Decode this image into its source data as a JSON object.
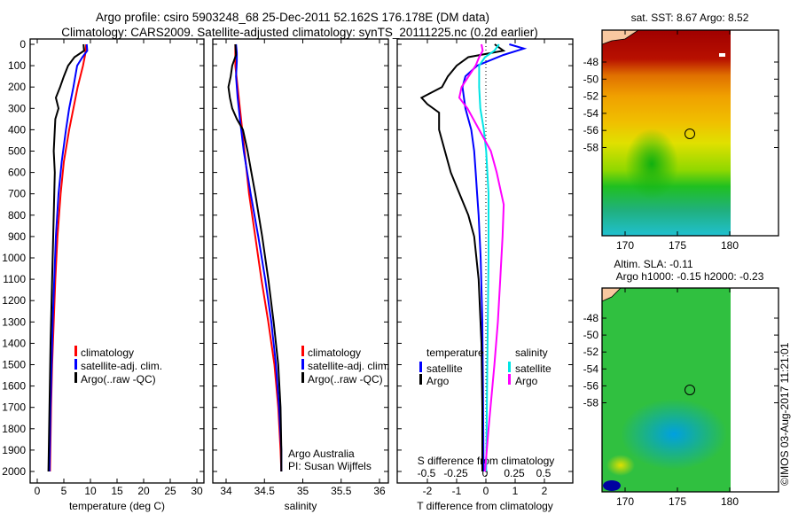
{
  "title_line1": "Argo profile: csiro 5903248_68 25-Dec-2011 52.162S 176.178E (DM data)",
  "title_line2": "Climatology: CARS2009. Satellite-adjusted climatology: synTS_20111225.nc (0.2d earlier)",
  "watermark": "©IMOS 03-Aug-2017 11:21:01",
  "colors": {
    "climatology": "#ff0000",
    "satellite": "#0000ff",
    "argo": "#000000",
    "s_satellite": "#00e5e5",
    "s_argo": "#ff00ff"
  },
  "chart_data": [
    {
      "type": "line",
      "xlabel": "temperature (deg C)",
      "ylabel": "",
      "xlim": [
        0,
        31
      ],
      "ylim": [
        2050,
        0
      ],
      "xticks": [
        "0",
        "5",
        "10",
        "15",
        "20",
        "25",
        "30"
      ],
      "xtick_values": [
        0,
        5,
        10,
        15,
        20,
        25,
        30
      ],
      "yticks": [
        "0",
        "100",
        "200",
        "300",
        "400",
        "500",
        "600",
        "700",
        "800",
        "900",
        "1000",
        "1100",
        "1200",
        "1300",
        "1400",
        "1500",
        "1600",
        "1700",
        "1800",
        "1900",
        "2000"
      ],
      "legend": [
        "climatology",
        "satellite-adj. clim.",
        "Argo(..raw -QC)"
      ],
      "series": [
        {
          "name": "climatology",
          "color_key": "climatology",
          "depth": [
            0,
            50,
            100,
            200,
            300,
            400,
            550,
            700,
            900,
            1100,
            1300,
            1500,
            1700,
            2000
          ],
          "values": [
            9.2,
            9.0,
            8.6,
            7.6,
            6.8,
            6.0,
            5.0,
            4.4,
            3.8,
            3.4,
            3.1,
            2.8,
            2.6,
            2.4
          ]
        },
        {
          "name": "satellite-adj. clim.",
          "color_key": "satellite",
          "depth": [
            0,
            30,
            60,
            100,
            200,
            300,
            400,
            550,
            700,
            900,
            1100,
            1300,
            1500,
            1700,
            2000
          ],
          "values": [
            9.3,
            9.4,
            8.5,
            7.5,
            6.8,
            6.0,
            5.4,
            4.6,
            4.0,
            3.5,
            3.2,
            2.9,
            2.7,
            2.5,
            2.3
          ]
        },
        {
          "name": "Argo(..raw -QC)",
          "color_key": "argo",
          "depth": [
            0,
            30,
            60,
            100,
            150,
            200,
            250,
            300,
            350,
            400,
            500,
            600,
            700,
            900,
            1100,
            1400,
            1700,
            2000
          ],
          "values": [
            8.7,
            8.8,
            7.0,
            5.8,
            5.0,
            4.3,
            3.5,
            4.0,
            3.4,
            3.3,
            3.1,
            3.3,
            3.2,
            3.0,
            2.8,
            2.5,
            2.3,
            2.1
          ]
        }
      ]
    },
    {
      "type": "line",
      "xlabel": "salinity",
      "xlim": [
        33.83,
        36.1
      ],
      "ylim": [
        2050,
        0
      ],
      "xticks": [
        "34",
        "34.5",
        "35",
        "35.5",
        "36"
      ],
      "xtick_values": [
        34,
        34.5,
        35,
        35.5,
        36
      ],
      "legend": [
        "climatology",
        "satellite-adj. clim.",
        "Argo(..raw -QC)"
      ],
      "annotation": [
        "Argo Australia",
        "PI: Susan Wijffels"
      ],
      "series": [
        {
          "name": "climatology",
          "color_key": "climatology",
          "depth": [
            0,
            100,
            200,
            300,
            400,
            500,
            700,
            900,
            1100,
            1300,
            1500,
            1700,
            1900,
            2000
          ],
          "values": [
            34.12,
            34.12,
            34.15,
            34.18,
            34.21,
            34.24,
            34.3,
            34.38,
            34.46,
            34.55,
            34.63,
            34.68,
            34.71,
            34.72
          ]
        },
        {
          "name": "satellite-adj. clim.",
          "color_key": "satellite",
          "depth": [
            0,
            40,
            80,
            150,
            250,
            350,
            500,
            700,
            900,
            1100,
            1300,
            1500,
            1700,
            1900,
            2000
          ],
          "values": [
            34.13,
            34.14,
            34.14,
            34.13,
            34.15,
            34.18,
            34.23,
            34.32,
            34.42,
            34.51,
            34.59,
            34.65,
            34.69,
            34.72,
            34.72
          ]
        },
        {
          "name": "Argo(..raw -QC)",
          "color_key": "argo",
          "depth": [
            0,
            50,
            100,
            150,
            200,
            250,
            300,
            350,
            400,
            500,
            600,
            700,
            900,
            1100,
            1300,
            1500,
            1700,
            1900,
            2000
          ],
          "values": [
            34.12,
            34.13,
            34.08,
            34.06,
            34.03,
            34.05,
            34.08,
            34.14,
            34.22,
            34.28,
            34.33,
            34.38,
            34.47,
            34.55,
            34.62,
            34.68,
            34.71,
            34.72,
            34.72
          ]
        }
      ]
    },
    {
      "type": "line",
      "xlabel": "T difference from climatology",
      "xlabel2": "S difference from climatology",
      "xlim": [
        -3,
        3
      ],
      "ylim": [
        2050,
        0
      ],
      "xticks": [
        "-2",
        "-1",
        "0",
        "1",
        "2"
      ],
      "xtick_values": [
        -2,
        -1,
        0,
        1,
        2
      ],
      "xticks2": [
        "-0.5",
        "-0.25",
        "0",
        "0.25",
        "0.5"
      ],
      "xtick2_values": [
        -0.5,
        -0.25,
        0,
        0.25,
        0.5
      ],
      "legend_temperature": {
        "title": "temperature",
        "items": [
          "satellite",
          "Argo"
        ]
      },
      "legend_salinity": {
        "title": "salinity",
        "items": [
          "satellite",
          "Argo"
        ]
      },
      "series": [
        {
          "name": "T satellite",
          "color_key": "satellite",
          "scale": "T",
          "depth": [
            0,
            20,
            50,
            100,
            150,
            200,
            300,
            400,
            500,
            600,
            700,
            800,
            1000,
            1300,
            1600,
            2000
          ],
          "values": [
            0.8,
            1.3,
            0.6,
            -0.3,
            -0.7,
            -0.8,
            -0.7,
            -0.5,
            -0.4,
            -0.35,
            -0.3,
            -0.25,
            -0.18,
            -0.12,
            -0.1,
            -0.08
          ]
        },
        {
          "name": "T Argo",
          "color_key": "argo",
          "scale": "T",
          "depth": [
            0,
            30,
            60,
            100,
            150,
            200,
            250,
            280,
            320,
            400,
            500,
            600,
            700,
            800,
            900,
            1100,
            1400,
            1700,
            2000
          ],
          "values": [
            0.3,
            0.6,
            -0.6,
            -1.0,
            -1.3,
            -1.5,
            -2.2,
            -2.0,
            -1.6,
            -1.6,
            -1.4,
            -1.2,
            -0.9,
            -0.6,
            -0.4,
            -0.25,
            -0.15,
            -0.12,
            -0.12
          ]
        },
        {
          "name": "S satellite",
          "color_key": "s_satellite",
          "scale": "S",
          "depth": [
            0,
            30,
            60,
            100,
            200,
            300,
            400,
            500,
            700,
            1000,
            1500,
            2000
          ],
          "values": [
            0.12,
            0.08,
            0.0,
            -0.05,
            -0.05,
            -0.04,
            -0.01,
            0.01,
            0.03,
            0.03,
            0.02,
            0.01
          ]
        },
        {
          "name": "S Argo",
          "color_key": "s_argo",
          "scale": "S",
          "depth": [
            0,
            30,
            60,
            100,
            200,
            250,
            300,
            400,
            500,
            600,
            750,
            900,
            1100,
            1300,
            1500,
            1800,
            2000
          ],
          "values": [
            -0.03,
            -0.02,
            -0.05,
            -0.08,
            -0.2,
            -0.22,
            -0.15,
            -0.05,
            0.05,
            0.1,
            0.16,
            0.15,
            0.13,
            0.11,
            0.08,
            0.03,
            0.0
          ]
        }
      ]
    }
  ],
  "maps": [
    {
      "title": [
        "sat. SST: 8.67 Argo: 8.52"
      ],
      "variable": "SST",
      "lon_ticks": [
        "170",
        "175",
        "180"
      ],
      "lat_ticks": [
        "-48",
        "-50",
        "-52",
        "-54",
        "-56",
        "-58"
      ],
      "marker": {
        "lon": 176.178,
        "lat": -52.162
      }
    },
    {
      "title": [
        "Altim. SLA: -0.11",
        "Argo h1000: -0.15 h2000: -0.23"
      ],
      "variable": "SLA",
      "lon_ticks": [
        "170",
        "175",
        "180"
      ],
      "lat_ticks": [
        "-48",
        "-50",
        "-52",
        "-54",
        "-56",
        "-58"
      ],
      "marker": {
        "lon": 176.178,
        "lat": -52.162
      }
    }
  ]
}
